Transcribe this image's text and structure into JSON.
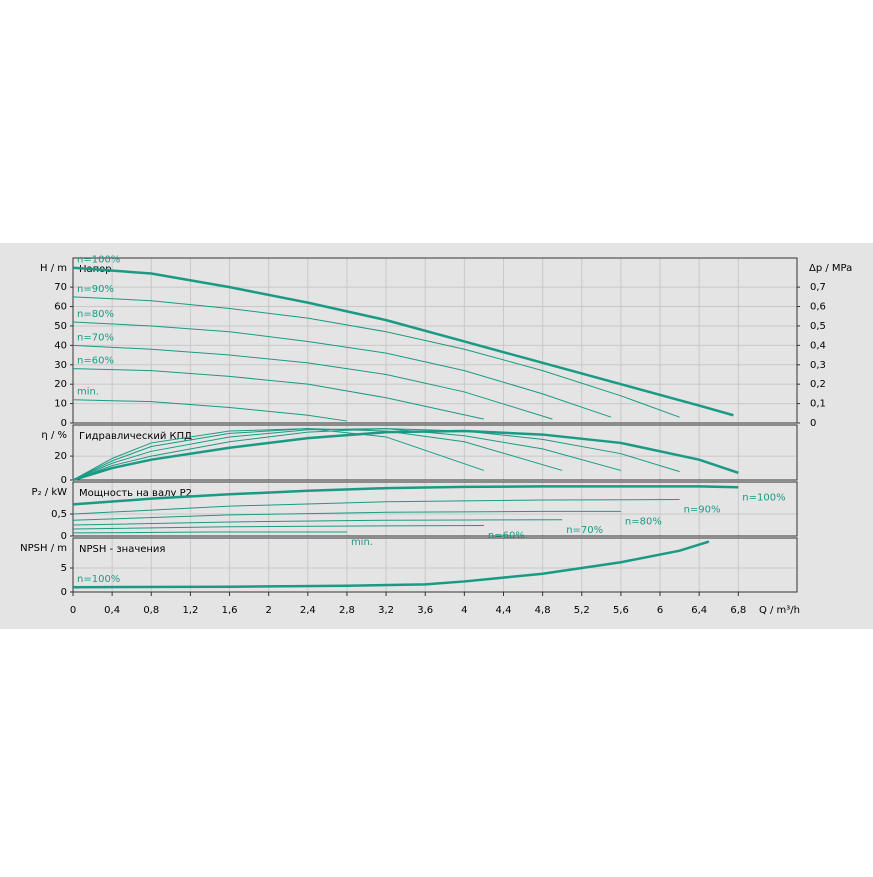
{
  "chart_data": [
    {
      "type": "line",
      "title": "Напор",
      "ylabel": "H / m",
      "y2label": "Δp / MPa",
      "xlim": [
        0,
        7.4
      ],
      "ylim": [
        0,
        85
      ],
      "yticks": [
        0,
        10,
        20,
        30,
        40,
        50,
        60,
        70
      ],
      "y2lim": [
        0,
        0.85
      ],
      "y2ticks": [
        0,
        {
          "value": 0.1,
          "label": "0,1"
        },
        {
          "value": 0.2,
          "label": "0,2"
        },
        {
          "value": 0.3,
          "label": "0,3"
        },
        {
          "value": 0.4,
          "label": "0,4"
        },
        {
          "value": 0.5,
          "label": "0,5"
        },
        {
          "value": 0.6,
          "label": "0,6"
        },
        {
          "value": 0.7,
          "label": "0,7"
        }
      ],
      "grid": true,
      "series": [
        {
          "name": "n=100%",
          "color": "#1a9a85",
          "x": [
            0,
            0.8,
            1.6,
            2.4,
            3.2,
            4,
            4.8,
            5.6,
            6.4,
            6.75
          ],
          "values": [
            80,
            77,
            70,
            62,
            53,
            42,
            31,
            20,
            9,
            4
          ]
        },
        {
          "name": "n=90%",
          "color": "#1a9a85",
          "x": [
            0,
            0.8,
            1.6,
            2.4,
            3.2,
            4,
            4.8,
            5.6,
            6.2
          ],
          "values": [
            65,
            63,
            59,
            54,
            47,
            38,
            27,
            14,
            3
          ]
        },
        {
          "name": "n=80%",
          "color": "#1a9a85",
          "x": [
            0,
            0.8,
            1.6,
            2.4,
            3.2,
            4,
            4.8,
            5.5
          ],
          "values": [
            52,
            50,
            47,
            42,
            36,
            27,
            15,
            3
          ]
        },
        {
          "name": "n=70%",
          "color": "#1a9a85",
          "x": [
            0,
            0.8,
            1.6,
            2.4,
            3.2,
            4,
            4.9
          ],
          "values": [
            40,
            38,
            35,
            31,
            25,
            16,
            2
          ]
        },
        {
          "name": "n=60%",
          "color": "#1a9a85",
          "x": [
            0,
            0.8,
            1.6,
            2.4,
            3.2,
            4.2
          ],
          "values": [
            28,
            27,
            24,
            20,
            13,
            2
          ]
        },
        {
          "name": "min.",
          "color": "#1a9a85",
          "x": [
            0,
            0.8,
            1.6,
            2.4,
            2.8
          ],
          "values": [
            12,
            11,
            8,
            4,
            1
          ]
        }
      ]
    },
    {
      "type": "line",
      "title": "Гидравлический КПД",
      "ylabel": "η / %",
      "xlim": [
        0,
        7.4
      ],
      "ylim": [
        0,
        46
      ],
      "yticks": [
        0,
        20
      ],
      "grid": true,
      "series": [
        {
          "color": "#1a9a85",
          "x": [
            0,
            0.4,
            0.8,
            1.6,
            2.4,
            3.2,
            4,
            4.8,
            5.6,
            6.4,
            6.8
          ],
          "values": [
            0,
            10,
            17,
            27,
            35,
            40,
            41,
            38,
            31,
            17,
            6
          ]
        },
        {
          "color": "#1a9a85",
          "x": [
            0,
            0.4,
            0.8,
            1.6,
            2.4,
            3.2,
            4,
            4.8,
            5.6,
            6.2
          ],
          "values": [
            0,
            12,
            20,
            32,
            40,
            43,
            41,
            34,
            22,
            7
          ]
        },
        {
          "color": "#1a9a85",
          "x": [
            0,
            0.4,
            0.8,
            1.6,
            2.4,
            3.2,
            4,
            4.8,
            5.6
          ],
          "values": [
            0,
            14,
            24,
            36,
            42,
            43,
            37,
            26,
            8
          ]
        },
        {
          "color": "#1a9a85",
          "x": [
            0,
            0.4,
            0.8,
            1.6,
            2.4,
            3.2,
            4,
            5
          ],
          "values": [
            0,
            16,
            28,
            39,
            43,
            41,
            32,
            8
          ]
        },
        {
          "color": "#1a9a85",
          "x": [
            0,
            0.4,
            0.8,
            1.6,
            2.4,
            3.2,
            4.2
          ],
          "values": [
            0,
            18,
            31,
            41,
            43,
            36,
            8
          ]
        }
      ]
    },
    {
      "type": "line",
      "title": "Мощность на валу P2",
      "ylabel": "P₂ / kW",
      "xlim": [
        0,
        7.4
      ],
      "ylim": [
        0,
        1.23
      ],
      "yticks": [
        0,
        {
          "value": 0.5,
          "label": "0,5"
        }
      ],
      "grid": true,
      "series": [
        {
          "name": "n=100%",
          "color": "#1a9a85",
          "x": [
            0,
            0.8,
            1.6,
            2.4,
            3.2,
            4,
            4.8,
            5.6,
            6.4,
            6.8
          ],
          "values": [
            0.72,
            0.85,
            0.95,
            1.03,
            1.09,
            1.12,
            1.13,
            1.13,
            1.13,
            1.11
          ]
        },
        {
          "name": "n=90%",
          "color": "#1a9a85",
          "x": [
            0,
            1.6,
            3.2,
            4.8,
            6.2
          ],
          "values": [
            0.5,
            0.68,
            0.78,
            0.82,
            0.83
          ]
        },
        {
          "name": "n=80%",
          "color": "#1a9a85",
          "x": [
            0,
            1.6,
            3.2,
            4.8,
            5.6
          ],
          "values": [
            0.36,
            0.48,
            0.54,
            0.56,
            0.56
          ]
        },
        {
          "name": "n=70%",
          "color": "#1a9a85",
          "x": [
            0,
            1.6,
            3.2,
            5
          ],
          "values": [
            0.25,
            0.32,
            0.36,
            0.37
          ]
        },
        {
          "name": "n=60%",
          "color": "#1a9a85",
          "x": [
            0,
            1.6,
            3.2,
            4.2
          ],
          "values": [
            0.16,
            0.21,
            0.23,
            0.24
          ]
        },
        {
          "name": "min.",
          "color": "#1a9a85",
          "x": [
            0,
            1.4,
            2.8
          ],
          "values": [
            0.07,
            0.09,
            0.09
          ]
        }
      ]
    },
    {
      "type": "line",
      "title": "NPSH - значения",
      "ylabel": "NPSH / m",
      "xlabel": "Q / m³/h",
      "xlim": [
        0,
        7.4
      ],
      "ylim": [
        0,
        11.25
      ],
      "yticks": [
        0,
        5
      ],
      "grid": true,
      "xticks": [
        0,
        {
          "value": 0.4,
          "label": "0,4"
        },
        {
          "value": 0.8,
          "label": "0,8"
        },
        {
          "value": 1.2,
          "label": "1,2"
        },
        {
          "value": 1.6,
          "label": "1,6"
        },
        2,
        {
          "value": 2.4,
          "label": "2,4"
        },
        {
          "value": 2.8,
          "label": "2,8"
        },
        {
          "value": 3.2,
          "label": "3,2"
        },
        {
          "value": 3.6,
          "label": "3,6"
        },
        4,
        {
          "value": 4.4,
          "label": "4,4"
        },
        {
          "value": 4.8,
          "label": "4,8"
        },
        {
          "value": 5.2,
          "label": "5,2"
        },
        {
          "value": 5.6,
          "label": "5,6"
        },
        6,
        {
          "value": 6.4,
          "label": "6,4"
        },
        {
          "value": 6.8,
          "label": "6,8"
        }
      ],
      "series": [
        {
          "name": "n=100%",
          "color": "#1a9a85",
          "x": [
            0,
            1.6,
            2.8,
            3.6,
            4,
            4.8,
            5.6,
            6.2,
            6.5
          ],
          "values": [
            1,
            1.1,
            1.3,
            1.6,
            2.2,
            3.8,
            6.2,
            8.6,
            10.5
          ]
        }
      ]
    }
  ]
}
